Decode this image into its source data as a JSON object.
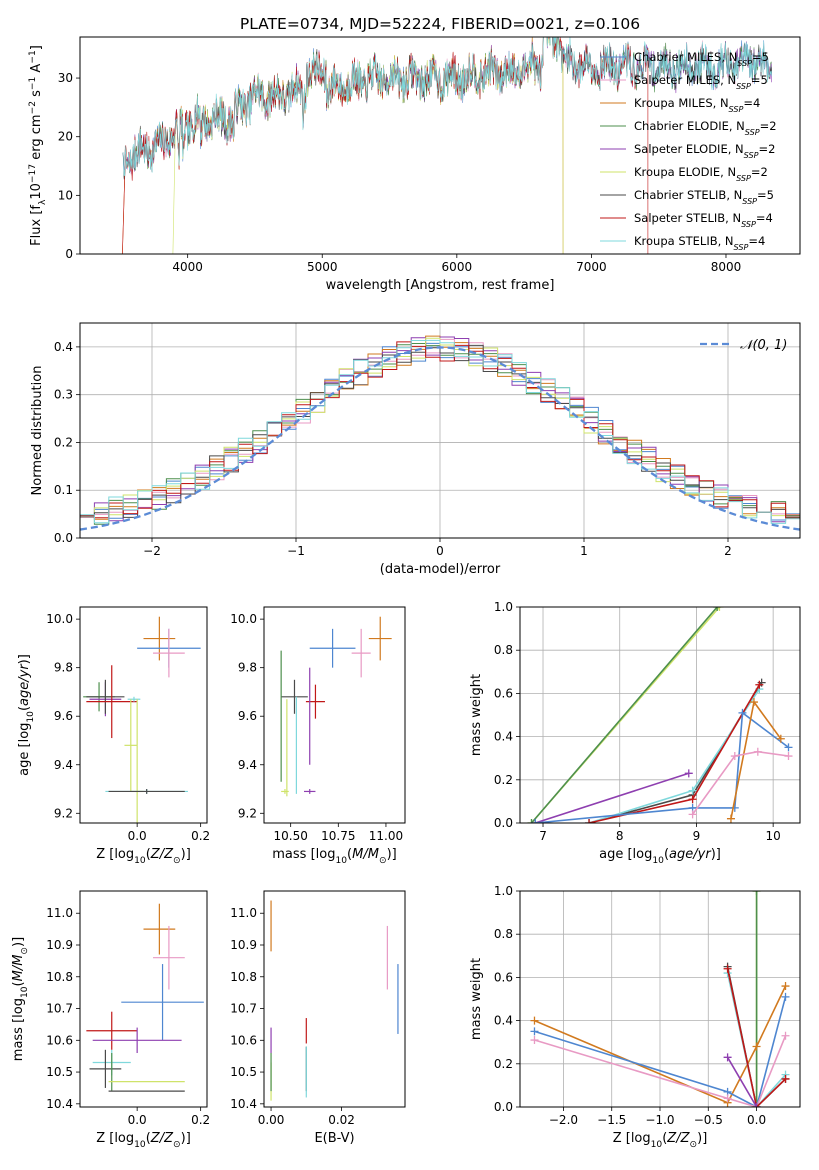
{
  "figure_title": "PLATE=0734, MJD=52224, FIBERID=0021, z=0.106",
  "series_meta": [
    {
      "name": "Chabrier MILES, N$_{SSP}$=5",
      "base": "Chabrier MILES, N",
      "nssp": "5",
      "color": "#4e86d0"
    },
    {
      "name": "Salpeter MILES, N$_{SSP}$=5",
      "base": "Salpeter MILES, N",
      "nssp": "5",
      "color": "#e89ac4"
    },
    {
      "name": "Kroupa MILES, N$_{SSP}$=4",
      "base": "Kroupa MILES, N",
      "nssp": "4",
      "color": "#d17a1f"
    },
    {
      "name": "Chabrier ELODIE, N$_{SSP}$=2",
      "base": "Chabrier ELODIE, N",
      "nssp": "2",
      "color": "#4d8f4d"
    },
    {
      "name": "Salpeter ELODIE, N$_{SSP}$=2",
      "base": "Salpeter ELODIE, N",
      "nssp": "2",
      "color": "#8e3fb0"
    },
    {
      "name": "Kroupa ELODIE, N$_{SSP}$=2",
      "base": "Kroupa ELODIE, N",
      "nssp": "2",
      "color": "#cfe36a"
    },
    {
      "name": "Chabrier STELIB, N$_{SSP}$=5",
      "base": "Chabrier STELIB, N",
      "nssp": "5",
      "color": "#4a4a4a"
    },
    {
      "name": "Salpeter STELIB, N$_{SSP}$=4",
      "base": "Salpeter STELIB, N",
      "nssp": "4",
      "color": "#c01818"
    },
    {
      "name": "Kroupa STELIB, N$_{SSP}$=4",
      "base": "Kroupa STELIB, N",
      "nssp": "4",
      "color": "#7fd8dc"
    }
  ],
  "chart_data": [
    {
      "id": "spectrum",
      "type": "line",
      "xlabel": "wavelength [Angstrom, rest frame]",
      "ylabel": "Flux [f$_\\lambda$10$^{-17}$ erg cm$^{-2}$ s$^{-1}$ A$^{-1}$]",
      "xlim": [
        3200,
        8550
      ],
      "ylim": [
        0,
        37
      ],
      "xticks": [
        4000,
        5000,
        6000,
        7000,
        8000
      ],
      "yticks": [
        0,
        10,
        20,
        30
      ],
      "legend": "upper right",
      "profile": {
        "x": [
          3520,
          3600,
          3700,
          3800,
          3900,
          4000,
          4100,
          4200,
          4300,
          4400,
          4500,
          4600,
          4700,
          4800,
          4900,
          5000,
          5200,
          5400,
          5600,
          5800,
          6000,
          6200,
          6400,
          6600,
          6800,
          7000,
          7200,
          7400,
          7600,
          7800,
          8000,
          8200,
          8350
        ],
        "y": [
          15,
          17,
          18,
          18.5,
          21,
          22,
          23,
          23,
          23,
          25,
          27,
          27,
          27,
          28,
          28,
          28,
          29,
          30,
          30,
          30,
          30,
          31,
          31,
          32,
          33,
          32,
          32,
          32,
          32,
          32,
          32,
          33,
          32
        ]
      },
      "cutoffs": [
        {
          "series": "Salpeter STELIB, N$_{SSP}$=4",
          "x_start": 3530,
          "x_end": 7420
        },
        {
          "series": "Kroupa ELODIE, N$_{SSP}$=2",
          "x_start": 3905,
          "x_end": 6790
        },
        {
          "series": "Kroupa MILES, N$_{SSP}$=4",
          "x_start": 3530,
          "x_end": 6790
        }
      ]
    },
    {
      "id": "residuals",
      "type": "step",
      "xlabel": "(data-model)/error",
      "ylabel": "Normed distribution",
      "xlim": [
        -2.5,
        2.5
      ],
      "ylim": [
        0,
        0.45
      ],
      "xticks": [
        -2,
        -1,
        0,
        1,
        2
      ],
      "yticks": [
        0.0,
        0.1,
        0.2,
        0.3,
        0.4
      ],
      "bin_width": 0.1,
      "grid": true,
      "gaussian": {
        "name": "$\\mathcal{N}(0,1)$",
        "mean": 0,
        "sigma": 1,
        "color": "#5b8bd6"
      },
      "legend": "upper right"
    },
    {
      "id": "age_vs_Z",
      "type": "errorbar",
      "xlabel": "Z [log$_{10}$(Z/Z$_\\odot$)]",
      "ylabel": "age  [log$_{10}$(age/yr)]",
      "xlim": [
        -0.18,
        0.22
      ],
      "ylim": [
        9.16,
        10.05
      ],
      "xticks": [
        0.0,
        0.2
      ],
      "yticks": [
        9.2,
        9.4,
        9.6,
        9.8,
        10.0
      ],
      "points": [
        {
          "c": "#d17a1f",
          "x": 0.07,
          "xe": 0.05,
          "y": 9.92,
          "ye": 0.09
        },
        {
          "c": "#4e86d0",
          "x": 0.1,
          "xe": 0.1,
          "y": 9.88,
          "ye": 0.08
        },
        {
          "c": "#e89ac4",
          "x": 0.1,
          "xe": 0.05,
          "y": 9.86,
          "ye": 0.1
        },
        {
          "c": "#4d8f4d",
          "x": -0.12,
          "xe": 0.05,
          "y": 9.68,
          "ye": 0.06
        },
        {
          "c": "#8e3fb0",
          "x": -0.1,
          "xe": 0.05,
          "y": 9.67,
          "ye": 0.07
        },
        {
          "c": "#4a4a4a",
          "x": -0.1,
          "xe": 0.06,
          "y": 9.68,
          "ye": 0.07
        },
        {
          "c": "#c01818",
          "x": -0.08,
          "xe": 0.08,
          "y": 9.66,
          "ye": 0.15
        },
        {
          "c": "#7fd8dc",
          "x": -0.01,
          "xe": 0.02,
          "y": 9.67,
          "ye": 0.01
        },
        {
          "c": "#cfe36a",
          "x": -0.02,
          "xe": 0.02,
          "y": 9.48,
          "ye": 0.19
        },
        {
          "c": "#cfe36a",
          "x": 0.0,
          "xe": 0.02,
          "y": 9.29,
          "ye": 0.38
        },
        {
          "c": "#7fd8dc",
          "x": 0.03,
          "xe": 0.13,
          "y": 9.29,
          "ye": 0.01
        },
        {
          "c": "#4a4a4a",
          "x": 0.03,
          "xe": 0.12,
          "y": 9.29,
          "ye": 0.01
        }
      ]
    },
    {
      "id": "age_vs_mass",
      "type": "errorbar",
      "xlabel": "mass [log$_{10}$(M/M$_\\odot$)]",
      "ylabel": "",
      "xlim": [
        10.36,
        11.1
      ],
      "ylim": [
        9.16,
        10.05
      ],
      "xticks": [
        10.5,
        10.75,
        11.0
      ],
      "yticks": [
        9.2,
        9.4,
        9.6,
        9.8,
        10.0
      ],
      "points": [
        {
          "c": "#d17a1f",
          "x": 10.97,
          "xe": 0.06,
          "y": 9.92,
          "ye": 0.09
        },
        {
          "c": "#4e86d0",
          "x": 10.72,
          "xe": 0.12,
          "y": 9.88,
          "ye": 0.08
        },
        {
          "c": "#e89ac4",
          "x": 10.87,
          "xe": 0.05,
          "y": 9.86,
          "ye": 0.1
        },
        {
          "c": "#4a4a4a",
          "x": 10.52,
          "xe": 0.07,
          "y": 9.68,
          "ye": 0.07
        },
        {
          "c": "#c01818",
          "x": 10.63,
          "xe": 0.05,
          "y": 9.66,
          "ye": 0.07
        },
        {
          "c": "#8e3fb0",
          "x": 10.6,
          "xe": 0.0,
          "y": 9.6,
          "ye": 0.2
        },
        {
          "c": "#8e3fb0",
          "x": 10.6,
          "xe": 0.03,
          "y": 9.29,
          "ye": 0.01
        },
        {
          "c": "#4d8f4d",
          "x": 10.45,
          "xe": 0.0,
          "y": 9.6,
          "ye": 0.27
        },
        {
          "c": "#cfe36a",
          "x": 10.48,
          "xe": 0.0,
          "y": 9.47,
          "ye": 0.2
        },
        {
          "c": "#7fd8dc",
          "x": 10.53,
          "xe": 0.0,
          "y": 9.48,
          "ye": 0.2
        },
        {
          "c": "#cfe36a",
          "x": 10.47,
          "xe": 0.02,
          "y": 9.29,
          "ye": 0.01
        }
      ]
    },
    {
      "id": "weight_vs_age",
      "type": "line",
      "xlabel": "age  [log$_{10}$(age/yr)]",
      "ylabel": "mass weight",
      "xlim": [
        6.7,
        10.35
      ],
      "ylim": [
        0,
        1
      ],
      "xticks": [
        7,
        8,
        9,
        10
      ],
      "yticks": [
        0.0,
        0.2,
        0.4,
        0.6,
        0.8,
        1.0
      ],
      "grid": true,
      "series": [
        {
          "c": "#cfe36a",
          "x": [
            6.85,
            9.3
          ],
          "y": [
            0.0,
            1.0
          ]
        },
        {
          "c": "#4d8f4d",
          "x": [
            6.85,
            9.27
          ],
          "y": [
            0.0,
            1.0
          ]
        },
        {
          "c": "#8e3fb0",
          "x": [
            6.9,
            8.9
          ],
          "y": [
            0.0,
            0.23
          ]
        },
        {
          "c": "#4a4a4a",
          "x": [
            7.6,
            8.95,
            9.85
          ],
          "y": [
            0.0,
            0.13,
            0.65
          ]
        },
        {
          "c": "#7fd8dc",
          "x": [
            7.6,
            8.95,
            9.82
          ],
          "y": [
            0.0,
            0.15,
            0.62
          ]
        },
        {
          "c": "#c01818",
          "x": [
            7.6,
            8.95,
            9.82
          ],
          "y": [
            0.0,
            0.11,
            0.64
          ]
        },
        {
          "c": "#4e86d0",
          "x": [
            6.9,
            8.95,
            9.5,
            9.6,
            10.2
          ],
          "y": [
            0.0,
            0.07,
            0.07,
            0.51,
            0.35
          ]
        },
        {
          "c": "#d17a1f",
          "x": [
            9.45,
            9.75,
            10.1
          ],
          "y": [
            0.02,
            0.56,
            0.39
          ]
        },
        {
          "c": "#e89ac4",
          "x": [
            8.95,
            9.5,
            9.8,
            10.2
          ],
          "y": [
            0.04,
            0.31,
            0.33,
            0.31
          ]
        }
      ]
    },
    {
      "id": "mass_vs_Z",
      "type": "errorbar",
      "xlabel": "Z [log$_{10}$(Z/Z$_\\odot$)]",
      "ylabel": "mass [log$_{10}$(M/M$_\\odot$)]",
      "xlim": [
        -0.18,
        0.22
      ],
      "ylim": [
        10.39,
        11.07
      ],
      "xticks": [
        0.0,
        0.2
      ],
      "yticks": [
        10.4,
        10.5,
        10.6,
        10.7,
        10.8,
        10.9,
        11.0
      ],
      "points": [
        {
          "c": "#d17a1f",
          "x": 0.07,
          "xe": 0.05,
          "y": 10.95,
          "ye": 0.08
        },
        {
          "c": "#e89ac4",
          "x": 0.1,
          "xe": 0.05,
          "y": 10.86,
          "ye": 0.1
        },
        {
          "c": "#4e86d0",
          "x": 0.08,
          "xe": 0.13,
          "y": 10.72,
          "ye": 0.12
        },
        {
          "c": "#c01818",
          "x": -0.08,
          "xe": 0.08,
          "y": 10.63,
          "ye": 0.06
        },
        {
          "c": "#8e3fb0",
          "x": 0.0,
          "xe": 0.14,
          "y": 10.6,
          "ye": 0.04
        },
        {
          "c": "#7fd8dc",
          "x": -0.08,
          "xe": 0.06,
          "y": 10.53,
          "ye": 0.04
        },
        {
          "c": "#4a4a4a",
          "x": -0.1,
          "xe": 0.05,
          "y": 10.51,
          "ye": 0.06
        },
        {
          "c": "#4d8f4d",
          "x": -0.08,
          "xe": 0.0,
          "y": 10.5,
          "ye": 0.06
        },
        {
          "c": "#cfe36a",
          "x": 0.03,
          "xe": 0.12,
          "y": 10.47,
          "ye": 0.0
        },
        {
          "c": "#4a4a4a",
          "x": 0.03,
          "xe": 0.12,
          "y": 10.44,
          "ye": 0.0
        }
      ]
    },
    {
      "id": "mass_vs_EBV",
      "type": "errorbar",
      "xlabel": "E(B-V)",
      "ylabel": "",
      "xlim": [
        -0.002,
        0.038
      ],
      "ylim": [
        10.39,
        11.07
      ],
      "xticks": [
        0.0,
        0.02
      ],
      "yticks": [
        10.4,
        10.5,
        10.6,
        10.7,
        10.8,
        10.9,
        11.0
      ],
      "points": [
        {
          "c": "#d17a1f",
          "x": 0.0,
          "xe": 0.0,
          "y": 10.96,
          "ye": 0.08
        },
        {
          "c": "#8e3fb0",
          "x": 0.0,
          "xe": 0.0,
          "y": 10.6,
          "ye": 0.04
        },
        {
          "c": "#cfe36a",
          "x": 0.0,
          "xe": 0.0,
          "y": 10.47,
          "ye": 0.06
        },
        {
          "c": "#4d8f4d",
          "x": 0.0,
          "xe": 0.0,
          "y": 10.5,
          "ye": 0.06
        },
        {
          "c": "#c01818",
          "x": 0.01,
          "xe": 0.0,
          "y": 10.63,
          "ye": 0.04
        },
        {
          "c": "#4a4a4a",
          "x": 0.01,
          "xe": 0.0,
          "y": 10.51,
          "ye": 0.07
        },
        {
          "c": "#7fd8dc",
          "x": 0.01,
          "xe": 0.0,
          "y": 10.5,
          "ye": 0.08
        },
        {
          "c": "#e89ac4",
          "x": 0.033,
          "xe": 0.0,
          "y": 10.86,
          "ye": 0.1
        },
        {
          "c": "#4e86d0",
          "x": 0.036,
          "xe": 0.0,
          "y": 10.73,
          "ye": 0.11
        }
      ]
    },
    {
      "id": "weight_vs_Z",
      "type": "line",
      "xlabel": "Z [log$_{10}$(Z/Z$_\\odot$)]",
      "ylabel": "mass weight",
      "xlim": [
        -2.45,
        0.45
      ],
      "ylim": [
        0,
        1
      ],
      "xticks": [
        -2.0,
        -1.5,
        -1.0,
        -0.5,
        0.0
      ],
      "yticks": [
        0.0,
        0.2,
        0.4,
        0.6,
        0.8,
        1.0
      ],
      "grid": true,
      "series": [
        {
          "c": "#cfe36a",
          "x": [
            0.0,
            0.0
          ],
          "y": [
            0.0,
            1.0
          ]
        },
        {
          "c": "#4d8f4d",
          "x": [
            0.0,
            0.0
          ],
          "y": [
            0.0,
            1.0
          ]
        },
        {
          "c": "#d17a1f",
          "x": [
            -2.3,
            -0.3,
            0.0,
            0.3
          ],
          "y": [
            0.4,
            0.02,
            0.28,
            0.56
          ]
        },
        {
          "c": "#4e86d0",
          "x": [
            -2.3,
            -0.3,
            0.0,
            0.3
          ],
          "y": [
            0.35,
            0.07,
            0.0,
            0.51
          ]
        },
        {
          "c": "#e89ac4",
          "x": [
            -2.3,
            -0.3,
            0.0,
            0.3
          ],
          "y": [
            0.31,
            0.04,
            0.0,
            0.33
          ]
        },
        {
          "c": "#4a4a4a",
          "x": [
            -0.3,
            0.0,
            0.3
          ],
          "y": [
            0.65,
            0.0,
            0.13
          ]
        },
        {
          "c": "#7fd8dc",
          "x": [
            -0.3,
            0.0,
            0.3
          ],
          "y": [
            0.62,
            0.0,
            0.15
          ]
        },
        {
          "c": "#c01818",
          "x": [
            -0.3,
            0.0,
            0.3
          ],
          "y": [
            0.64,
            0.0,
            0.13
          ]
        },
        {
          "c": "#8e3fb0",
          "x": [
            -0.3,
            0.0
          ],
          "y": [
            0.23,
            0.0
          ]
        }
      ]
    }
  ]
}
